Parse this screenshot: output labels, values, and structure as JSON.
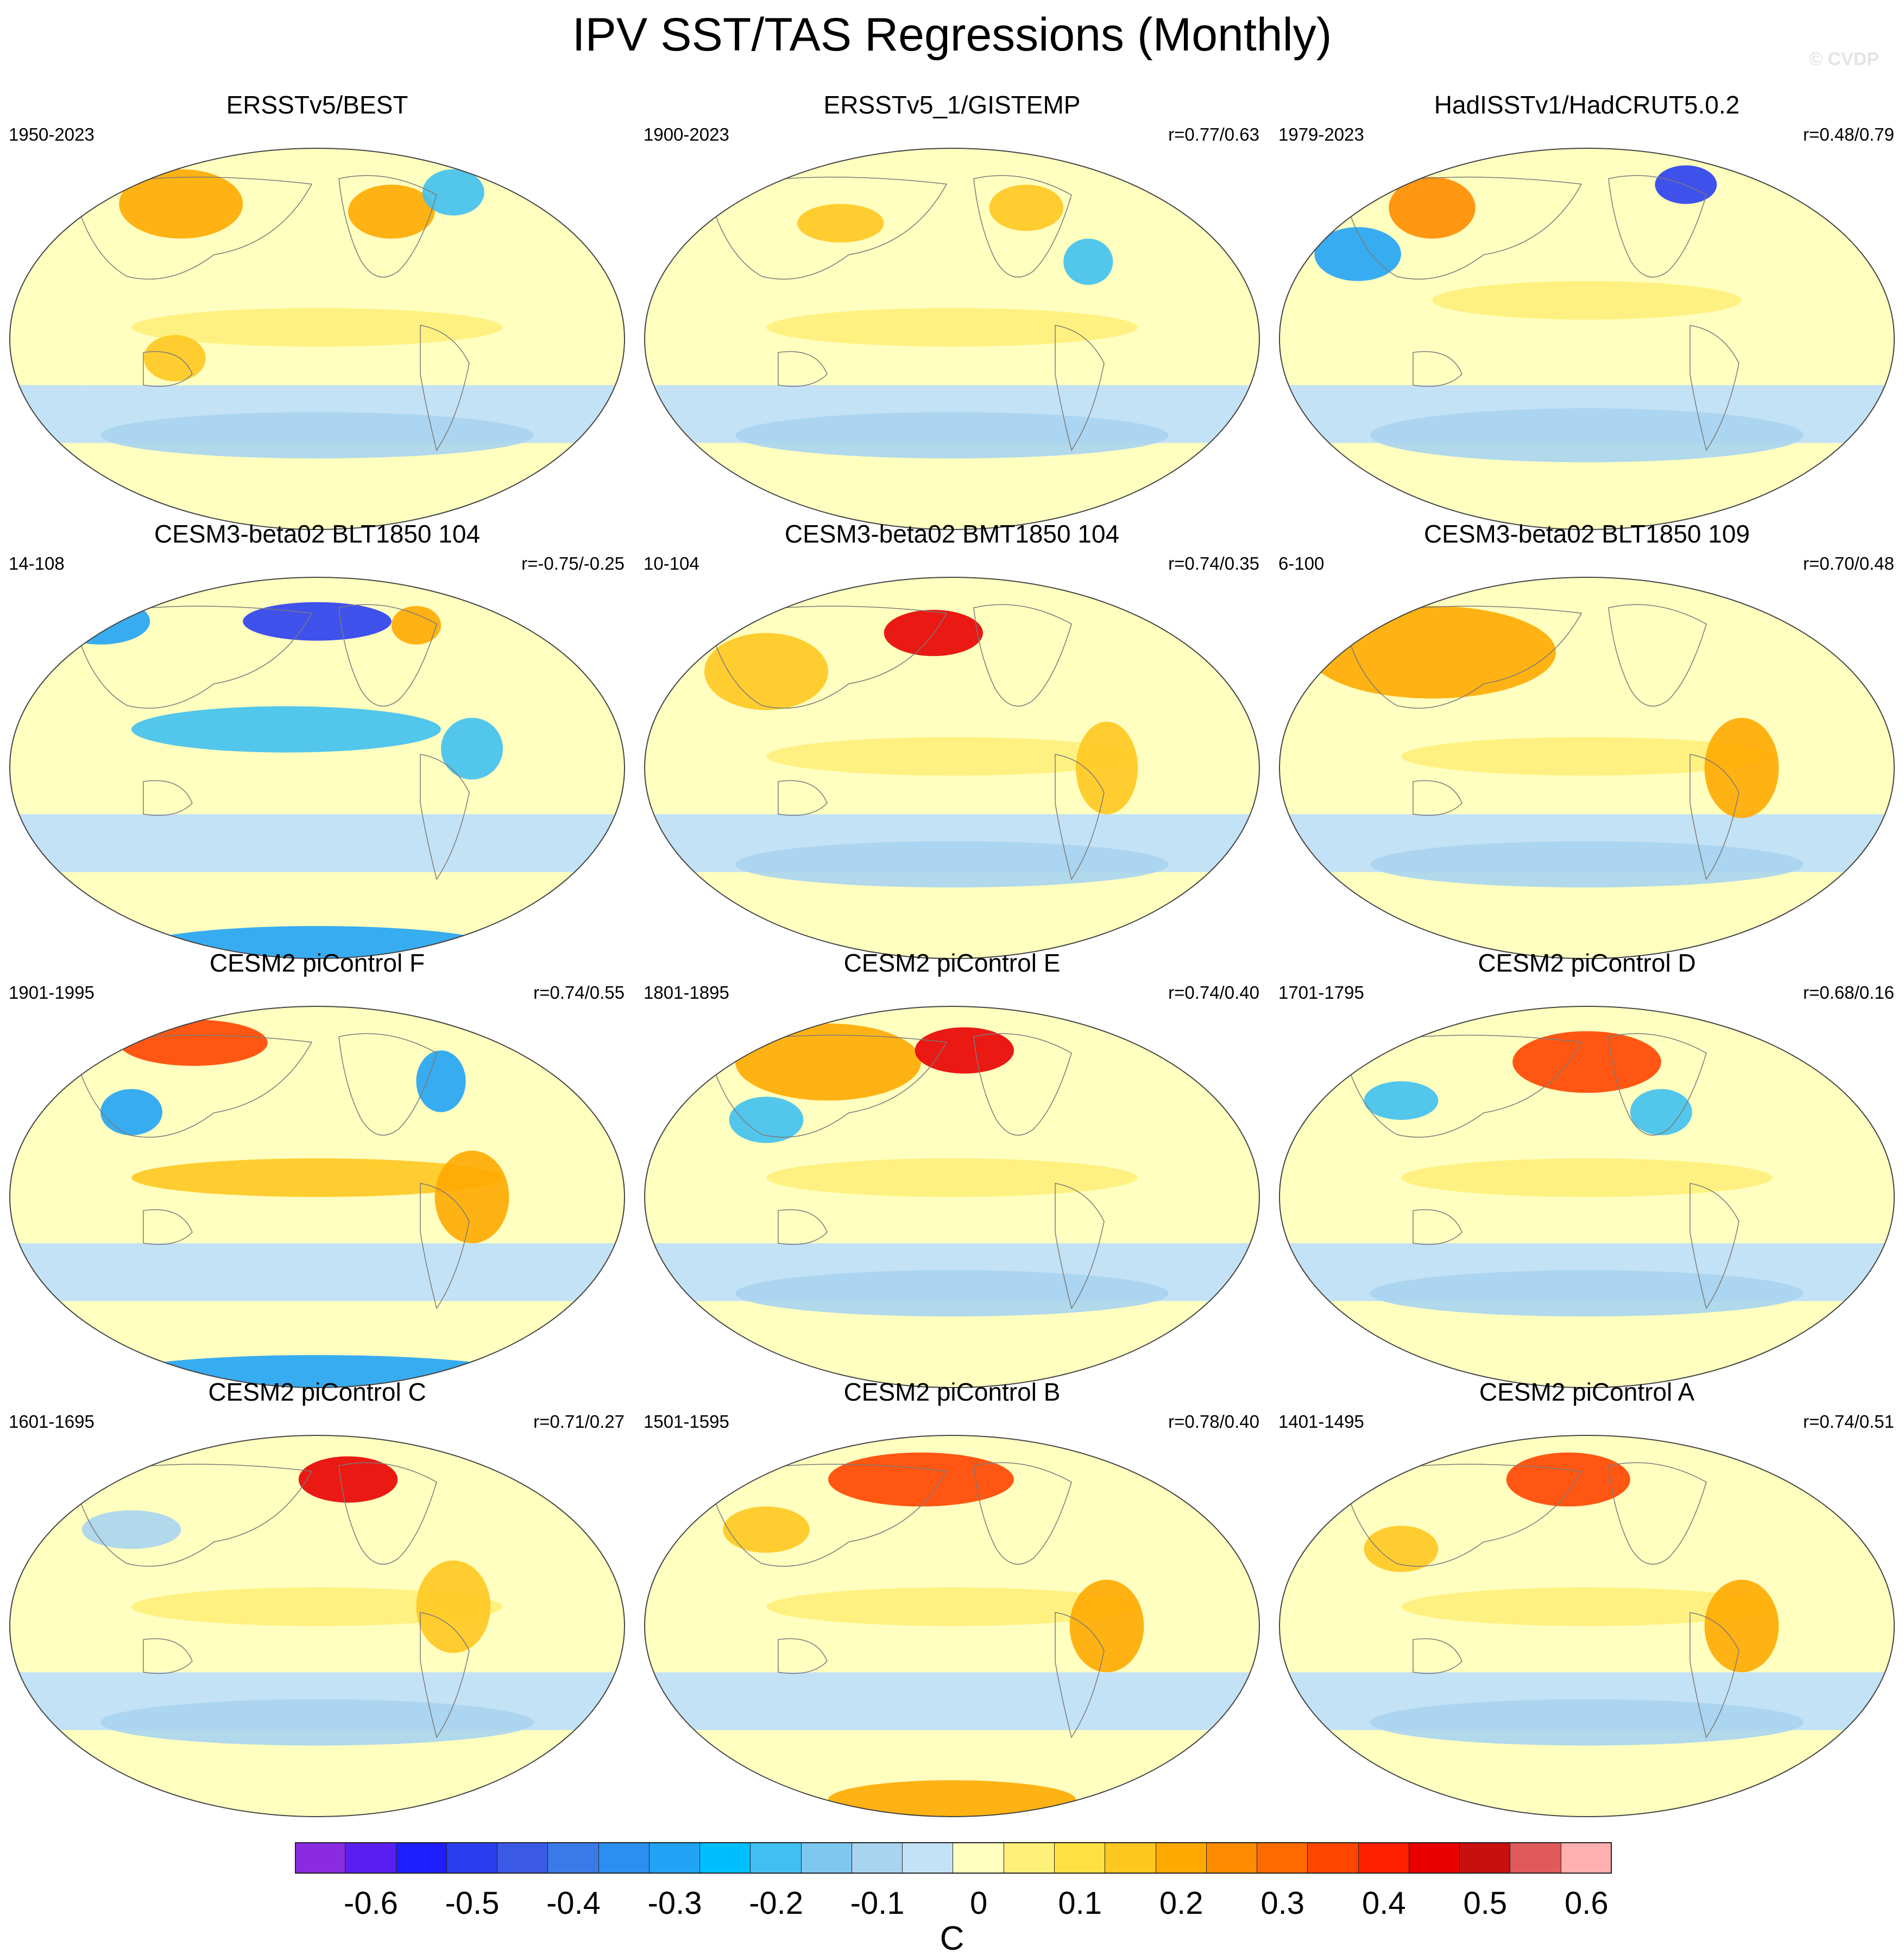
{
  "title": "IPV SST/TAS Regressions (Monthly)",
  "watermark": "© CVDP",
  "units": "C",
  "colorbar": {
    "colors": [
      "#8a2be2",
      "#5a1ef0",
      "#1e1eff",
      "#2a3ef0",
      "#3a5ae6",
      "#3a7ae8",
      "#2b8ff2",
      "#22a3f5",
      "#00bfff",
      "#40c0f0",
      "#7ec8f0",
      "#a8d4f0",
      "#c4e2f5",
      "#ffffc0",
      "#fff07a",
      "#ffe040",
      "#ffc820",
      "#ffaa00",
      "#ff8c00",
      "#ff6a00",
      "#ff4500",
      "#ff2000",
      "#e80000",
      "#c81010",
      "#e05a5a",
      "#ffb0b0"
    ],
    "labels": [
      "-0.6",
      "-0.5",
      "-0.4",
      "-0.3",
      "-0.2",
      "-0.1",
      "0",
      "0.1",
      "0.2",
      "0.3",
      "0.4",
      "0.5",
      "0.6"
    ]
  },
  "panels": [
    {
      "title": "ERSSTv5/BEST",
      "period": "1950-2023",
      "corr": ""
    },
    {
      "title": "ERSSTv5_1/GISTEMP",
      "period": "1900-2023",
      "corr": "r=0.77/0.63"
    },
    {
      "title": "HadISSTv1/HadCRUT5.0.2",
      "period": "1979-2023",
      "corr": "r=0.48/0.79"
    },
    {
      "title": "CESM3-beta02 BLT1850 104",
      "period": "14-108",
      "corr": "r=-0.75/-0.25"
    },
    {
      "title": "CESM3-beta02 BMT1850 104",
      "period": "10-104",
      "corr": "r=0.74/0.35"
    },
    {
      "title": "CESM3-beta02 BLT1850 109",
      "period": "6-100",
      "corr": "r=0.70/0.48"
    },
    {
      "title": "CESM2 piControl F",
      "period": "1901-1995",
      "corr": "r=0.74/0.55"
    },
    {
      "title": "CESM2 piControl E",
      "period": "1801-1895",
      "corr": "r=0.74/0.40"
    },
    {
      "title": "CESM2 piControl D",
      "period": "1701-1795",
      "corr": "r=0.68/0.16"
    },
    {
      "title": "CESM2 piControl C",
      "period": "1601-1695",
      "corr": "r=0.71/0.27"
    },
    {
      "title": "CESM2 piControl B",
      "period": "1501-1595",
      "corr": "r=0.78/0.40"
    },
    {
      "title": "CESM2 piControl A",
      "period": "1401-1495",
      "corr": "r=0.74/0.51"
    }
  ]
}
